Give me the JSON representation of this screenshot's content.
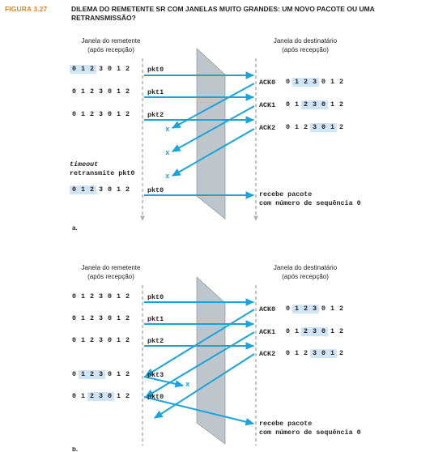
{
  "figure_label": "FIGURA 3.27",
  "figure_title": "DILEMA DO REMETENTE SR COM JANELAS MUITO GRANDES: UM NOVO PACOTE OU UMA RETRANSMISSÃO?",
  "sender_header": "Janela do remetente\n(após recepção)",
  "receiver_header": "Janela do destinatário\n(após recepção)",
  "part_a": {
    "label": "a.",
    "sender_rows": [
      {
        "window": [
          "0",
          "1",
          "2",
          "3",
          "0",
          "1",
          "2"
        ],
        "highlight": [
          0,
          1,
          2
        ],
        "pkt": "pkt0"
      },
      {
        "window": [
          "0",
          "1",
          "2",
          "3",
          "0",
          "1",
          "2"
        ],
        "highlight": [],
        "pkt": "pkt1"
      },
      {
        "window": [
          "0",
          "1",
          "2",
          "3",
          "0",
          "1",
          "2"
        ],
        "highlight": [],
        "pkt": "pkt2"
      },
      {
        "window": [
          "0",
          "1",
          "2",
          "3",
          "0",
          "1",
          "2"
        ],
        "highlight": [
          0,
          1,
          2
        ],
        "pkt": "pkt0"
      }
    ],
    "timeout_line1": "timeout",
    "timeout_line2": "retransmite pkt0",
    "acks": [
      {
        "label": "ACK0",
        "window": [
          "0",
          "1",
          "2",
          "3",
          "0",
          "1",
          "2"
        ],
        "highlight": [
          1,
          2,
          3
        ]
      },
      {
        "label": "ACK1",
        "window": [
          "0",
          "1",
          "2",
          "3",
          "0",
          "1",
          "2"
        ],
        "highlight": [
          2,
          3,
          4
        ]
      },
      {
        "label": "ACK2",
        "window": [
          "0",
          "1",
          "2",
          "3",
          "0",
          "1",
          "2"
        ],
        "highlight": [
          3,
          4,
          5
        ]
      }
    ],
    "x_marks": [
      "x",
      "x",
      "x"
    ],
    "receive_line1": "recebe pacote",
    "receive_line2": "com número de sequência 0"
  },
  "part_b": {
    "label": "b.",
    "sender_rows": [
      {
        "window": [
          "0",
          "1",
          "2",
          "3",
          "0",
          "1",
          "2"
        ],
        "highlight": [],
        "pkt": "pkt0"
      },
      {
        "window": [
          "0",
          "1",
          "2",
          "3",
          "0",
          "1",
          "2"
        ],
        "highlight": [],
        "pkt": "pkt1"
      },
      {
        "window": [
          "0",
          "1",
          "2",
          "3",
          "0",
          "1",
          "2"
        ],
        "highlight": [],
        "pkt": "pkt2"
      },
      {
        "window": [
          "0",
          "1",
          "2",
          "3",
          "0",
          "1",
          "2"
        ],
        "highlight": [
          1,
          2,
          3
        ],
        "pkt": "pkt3"
      },
      {
        "window": [
          "0",
          "1",
          "2",
          "3",
          "0",
          "1",
          "2"
        ],
        "highlight": [
          2,
          3,
          4
        ],
        "pkt": "pkt0"
      }
    ],
    "acks": [
      {
        "label": "ACK0",
        "window": [
          "0",
          "1",
          "2",
          "3",
          "0",
          "1",
          "2"
        ],
        "highlight": [
          1,
          2,
          3
        ]
      },
      {
        "label": "ACK1",
        "window": [
          "0",
          "1",
          "2",
          "3",
          "0",
          "1",
          "2"
        ],
        "highlight": [
          2,
          3,
          4
        ]
      },
      {
        "label": "ACK2",
        "window": [
          "0",
          "1",
          "2",
          "3",
          "0",
          "1",
          "2"
        ],
        "highlight": [
          3,
          4,
          5
        ]
      }
    ],
    "x_marks": [
      "x"
    ],
    "receive_line1": "recebe pacote",
    "receive_line2": "com número de sequência 0"
  },
  "colors": {
    "arrow": "#1aa4dc",
    "highlight": "#cfe5f6",
    "panel": "#b8bfc6",
    "timeline": "#b0b0b0",
    "figure_label": "#e8821e"
  }
}
